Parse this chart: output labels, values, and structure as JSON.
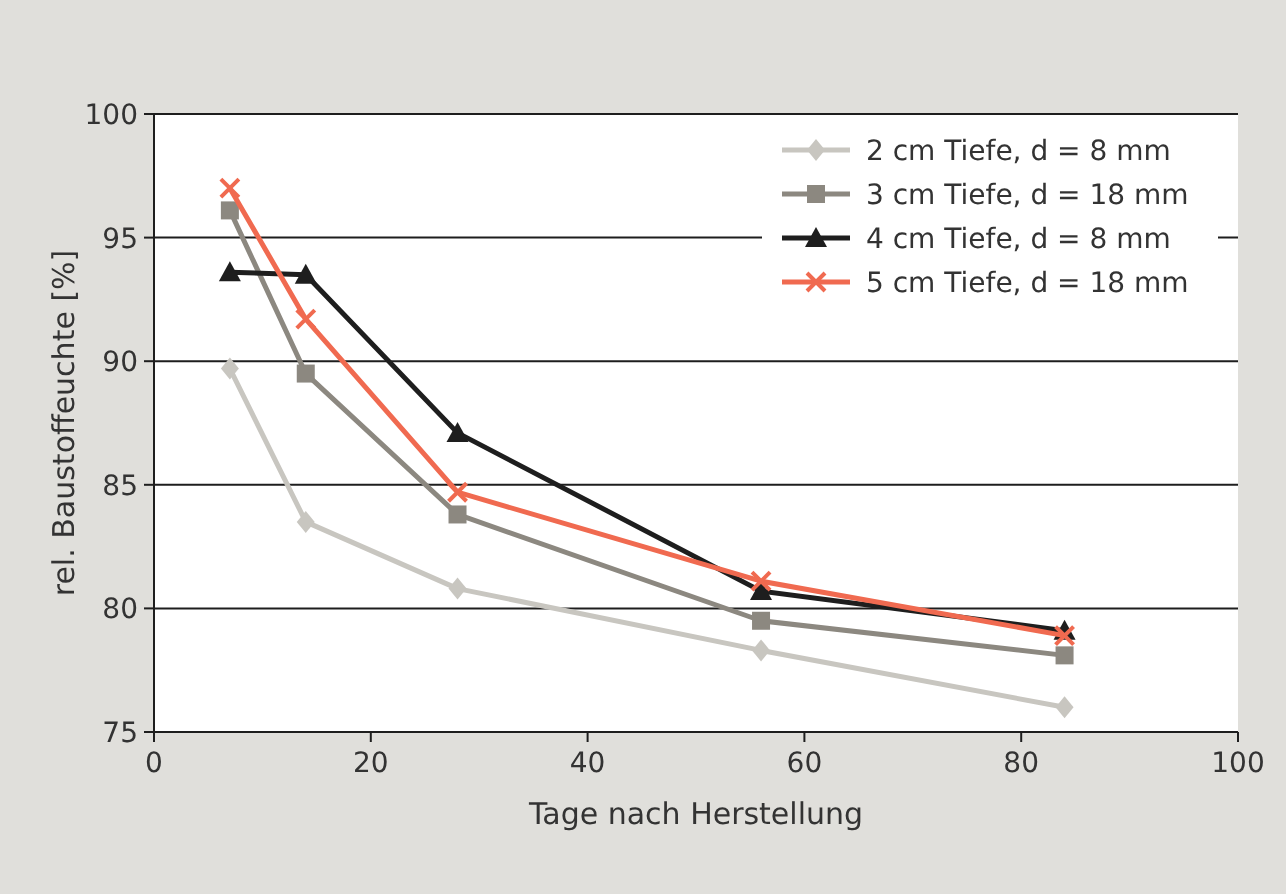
{
  "chart_data": {
    "type": "line",
    "xlabel": "Tage nach Herstellung",
    "ylabel": "rel. Baustoffeuchte [%]",
    "xlim": [
      0,
      100
    ],
    "xticks": [
      0,
      20,
      40,
      60,
      80,
      100
    ],
    "ylim": [
      75,
      100
    ],
    "yticks": [
      75,
      80,
      85,
      90,
      95,
      100
    ],
    "grid": "y",
    "legend": "top right",
    "series": [
      {
        "name": "2 cm Tiefe, d = 8 mm",
        "color": "#c8c6c0",
        "marker": "diamond",
        "x": [
          7,
          14,
          28,
          56,
          84
        ],
        "values": [
          89.7,
          83.5,
          80.8,
          78.3,
          76.0
        ]
      },
      {
        "name": "3 cm Tiefe, d = 18 mm",
        "color": "#8c8880",
        "marker": "square",
        "x": [
          7,
          14,
          28,
          56,
          84
        ],
        "values": [
          96.1,
          89.5,
          83.8,
          79.5,
          78.1
        ]
      },
      {
        "name": "4 cm Tiefe, d = 8 mm",
        "color": "#1e1e1e",
        "marker": "triangle",
        "x": [
          7,
          14,
          28,
          56,
          84
        ],
        "values": [
          93.6,
          93.5,
          87.1,
          80.7,
          79.1
        ]
      },
      {
        "name": "5 cm Tiefe, d = 18 mm",
        "color": "#f06a50",
        "marker": "cross",
        "x": [
          7,
          14,
          28,
          56,
          84
        ],
        "values": [
          97.0,
          91.7,
          84.7,
          81.1,
          78.9
        ]
      }
    ]
  }
}
